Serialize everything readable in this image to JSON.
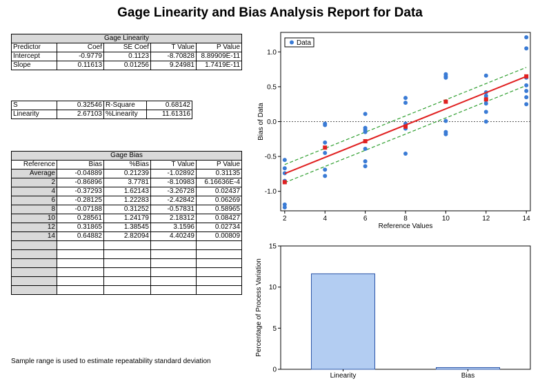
{
  "report": {
    "title": "Gage Linearity and Bias Analysis Report for Data",
    "footnote": "Sample range is used to estimate repeatability standard deviation"
  },
  "gage_linearity": {
    "title": "Gage Linearity",
    "headers": [
      "Predictor",
      "Coef",
      "SE Coef",
      "T Value",
      "P Value"
    ],
    "rows": [
      [
        "Intercept",
        "-0.9779",
        "0.1123",
        "-8.70828",
        "8.89909E-11"
      ],
      [
        "Slope",
        "0.11613",
        "0.01256",
        "9.24981",
        "1.7419E-11"
      ]
    ]
  },
  "stats": {
    "rows": [
      [
        "S",
        "0.32546",
        "R-Square",
        "0.68142"
      ],
      [
        "Linearity",
        "2.67103",
        "%Linearity",
        "11.61316"
      ]
    ]
  },
  "gage_bias": {
    "title": "Gage Bias",
    "headers": [
      "Reference",
      "Bias",
      "%Bias",
      "T Value",
      "P Value"
    ],
    "rows": [
      [
        "Average",
        "-0.04889",
        "0.21239",
        "-1.02892",
        "0.31135"
      ],
      [
        "2",
        "-0.86896",
        "3.7781",
        "-8.10983",
        "6.16636E-4"
      ],
      [
        "4",
        "-0.37293",
        "1.62143",
        "-3.26728",
        "0.02437"
      ],
      [
        "6",
        "-0.28125",
        "1.22283",
        "-2.42842",
        "0.06269"
      ],
      [
        "8",
        "-0.07188",
        "0.31252",
        "-0.57831",
        "0.58965"
      ],
      [
        "10",
        "0.28561",
        "1.24179",
        "2.18312",
        "0.08427"
      ],
      [
        "12",
        "0.31865",
        "1.38545",
        "3.1596",
        "0.02734"
      ],
      [
        "14",
        "0.64882",
        "2.82094",
        "4.40249",
        "0.00809"
      ]
    ],
    "empty_rows": 6
  },
  "chart_data": [
    {
      "type": "scatter",
      "xlabel": "Reference Values",
      "ylabel": "Bias of Data",
      "xlim": [
        1.8,
        14.2
      ],
      "ylim": [
        -1.28,
        1.28
      ],
      "xticks": [
        2,
        4,
        6,
        8,
        10,
        12,
        14
      ],
      "yticks": [
        -1.0,
        -0.5,
        0.0,
        0.5,
        1.0
      ],
      "ytick_labels": [
        "-1.0",
        "-0.5",
        "0.0",
        "0.5",
        "1.0"
      ],
      "legend": {
        "position": "top-left",
        "entries": [
          "Data"
        ]
      },
      "colors": {
        "points": "#3a7bd5",
        "mean": "#e02020",
        "fit": "#e02020",
        "ci": "#2e9e2e"
      },
      "series": [
        {
          "name": "Data",
          "points": [
            [
              2,
              -0.55
            ],
            [
              2,
              -0.67
            ],
            [
              2,
              -0.74
            ],
            [
              2,
              -0.85
            ],
            [
              2,
              -0.87
            ],
            [
              2,
              -1.19
            ],
            [
              2,
              -1.23
            ],
            [
              4,
              -0.03
            ],
            [
              4,
              -0.05
            ],
            [
              4,
              -0.3
            ],
            [
              4,
              -0.45
            ],
            [
              4,
              -0.69
            ],
            [
              4,
              -0.78
            ],
            [
              6,
              0.11
            ],
            [
              6,
              -0.09
            ],
            [
              6,
              -0.12
            ],
            [
              6,
              -0.15
            ],
            [
              6,
              -0.39
            ],
            [
              6,
              -0.57
            ],
            [
              6,
              -0.64
            ],
            [
              8,
              0.34
            ],
            [
              8,
              0.27
            ],
            [
              8,
              -0.03
            ],
            [
              8,
              -0.06
            ],
            [
              8,
              -0.1
            ],
            [
              8,
              -0.46
            ],
            [
              10,
              0.68
            ],
            [
              10,
              0.65
            ],
            [
              10,
              0.63
            ],
            [
              10,
              0.01
            ],
            [
              10,
              -0.15
            ],
            [
              10,
              -0.18
            ],
            [
              12,
              0.66
            ],
            [
              12,
              0.42
            ],
            [
              12,
              0.37
            ],
            [
              12,
              0.31
            ],
            [
              12,
              0.26
            ],
            [
              12,
              0.14
            ],
            [
              12,
              0.0
            ],
            [
              14,
              1.21
            ],
            [
              14,
              1.05
            ],
            [
              14,
              0.63
            ],
            [
              14,
              0.52
            ],
            [
              14,
              0.44
            ],
            [
              14,
              0.35
            ],
            [
              14,
              0.25
            ]
          ]
        }
      ],
      "bias_means": [
        [
          2,
          -0.86896
        ],
        [
          4,
          -0.37293
        ],
        [
          6,
          -0.28125
        ],
        [
          8,
          -0.07188
        ],
        [
          10,
          0.28561
        ],
        [
          12,
          0.31865
        ],
        [
          14,
          0.64882
        ]
      ],
      "fit": {
        "intercept": -0.9779,
        "slope": 0.11613
      },
      "ci_offset": 0.13,
      "reference_line": 0
    },
    {
      "type": "bar",
      "categories": [
        "Linearity",
        "Bias"
      ],
      "values": [
        11.61316,
        0.21239
      ],
      "ylabel": "Percentage of Process Variation",
      "ylim": [
        0,
        15
      ],
      "yticks": [
        0,
        5,
        10,
        15
      ],
      "colors": {
        "bar": "#b3cdf2",
        "edge": "#2b55a8"
      }
    }
  ]
}
